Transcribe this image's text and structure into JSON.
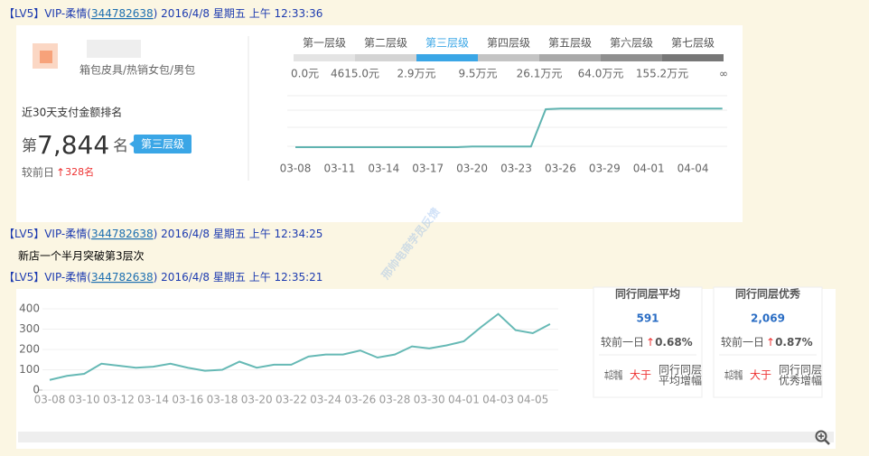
{
  "messages": [
    {
      "sender": "【LV5】VIP-柔情(",
      "qq": "344782638",
      "time": ") 2016/4/8 星期五 上午 12:33:36"
    },
    {
      "sender": "【LV5】VIP-柔情(",
      "qq": "344782638",
      "time": ") 2016/4/8 星期五 上午 12:34:25",
      "text": "新店一个半月突破第3层次"
    },
    {
      "sender": "【LV5】VIP-柔情(",
      "qq": "344782638",
      "time": ") 2016/4/8 星期五 上午 12:35:21"
    }
  ],
  "panel1": {
    "category": "箱包皮具/热销女包/男包",
    "rank_title": "近30天支付金额排名",
    "rank_prefix": "第",
    "rank": "7,844",
    "rank_suffix": "名",
    "tier_badge": "第三层级",
    "change_label": "较前日",
    "change": "328名",
    "tiers": [
      "第一层级",
      "第二层级",
      "第三层级",
      "第四层级",
      "第五层级",
      "第六层级",
      "第七层级"
    ],
    "tier_colors": [
      "#e4e4e4",
      "#d4d4d4",
      "#3aa6e6",
      "#c4c4c4",
      "#a9a9a9",
      "#8f8f8f",
      "#777777"
    ],
    "active_tier": 2,
    "thresholds": [
      "0.0元",
      "4615.0元",
      "2.9万元",
      "9.5万元",
      "26.1万元",
      "64.0万元",
      "155.2万元",
      "∞"
    ],
    "chart_data": {
      "type": "line",
      "color": "#5fb3b0",
      "ylim": [
        0,
        100
      ],
      "categories": [
        "03-08",
        null,
        null,
        "03-11",
        null,
        null,
        "03-14",
        null,
        null,
        "03-17",
        null,
        null,
        "03-20",
        null,
        null,
        "03-23",
        null,
        null,
        "03-26",
        null,
        null,
        "03-29",
        null,
        null,
        "04-01",
        null,
        null,
        "04-04",
        null,
        null
      ],
      "values": [
        10,
        10,
        10,
        10,
        10,
        10,
        10,
        10,
        10,
        10,
        10,
        10,
        11,
        11,
        11,
        11,
        11,
        70,
        71,
        71,
        71,
        71,
        71,
        71,
        71,
        71,
        71,
        71,
        71,
        71
      ]
    }
  },
  "panel2": {
    "chart_data": {
      "type": "line",
      "color": "#66b9b5",
      "grid": true,
      "ylim": [
        0,
        400
      ],
      "yticks": [
        0,
        100,
        200,
        300,
        400
      ],
      "categories": [
        "03-08",
        null,
        "03-10",
        null,
        "03-12",
        null,
        "03-14",
        null,
        "03-16",
        null,
        "03-18",
        null,
        "03-20",
        null,
        "03-22",
        null,
        "03-24",
        null,
        "03-26",
        null,
        "03-28",
        null,
        "03-30",
        null,
        "04-01",
        null,
        "04-03",
        null,
        "04-05",
        null
      ],
      "values": [
        50,
        70,
        80,
        130,
        120,
        110,
        115,
        130,
        110,
        95,
        100,
        140,
        110,
        125,
        125,
        165,
        175,
        175,
        195,
        160,
        175,
        215,
        205,
        220,
        240,
        310,
        375,
        295,
        280,
        325
      ]
    },
    "cards": [
      {
        "title": "同行同层平均",
        "value": "591",
        "change_label": "较前一日",
        "change": "0.68%",
        "left": "本店增幅",
        "compare": "大于",
        "right_1": "同行同层",
        "right_2": "平均增幅"
      },
      {
        "title": "同行同层优秀",
        "value": "2,069",
        "change_label": "较前一日",
        "change": "0.87%",
        "left": "本店增幅",
        "compare": "大于",
        "right_1": "同行同层",
        "right_2": "优秀增幅"
      }
    ]
  },
  "watermark": "邢帅电商学员反馈"
}
